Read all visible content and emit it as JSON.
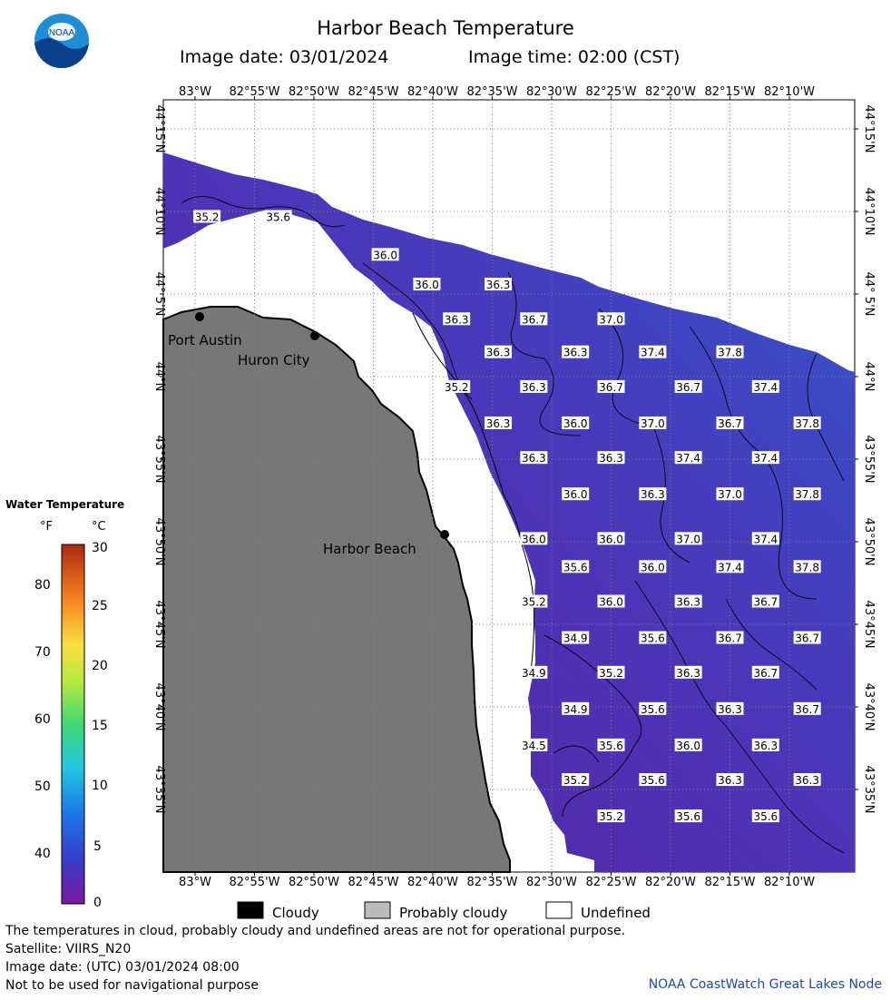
{
  "header": {
    "title": "Harbor Beach Temperature",
    "image_date": "Image date: 03/01/2024",
    "image_time": "Image time: 02:00 (CST)",
    "logo_text": "NOAA"
  },
  "map": {
    "lon_labels": [
      "83°W",
      "82°55'W",
      "82°50'W",
      "82°45'W",
      "82°40'W",
      "82°35'W",
      "82°30'W",
      "82°25'W",
      "82°20'W",
      "82°15'W",
      "82°10'W"
    ],
    "lat_labels": [
      "44°15'N",
      "44°10'N",
      "44° 5'N",
      "44°N",
      "43°55'N",
      "43°50'N",
      "43°45'N",
      "43°40'N",
      "43°35'N"
    ],
    "places": [
      {
        "name": "Port Austin"
      },
      {
        "name": "Huron City"
      },
      {
        "name": "Harbor Beach"
      }
    ],
    "temperature_labels": [
      {
        "text": "35.2",
        "lon": "82°59'",
        "lat": "44°9.7'"
      },
      {
        "text": "35.6",
        "lon": "82°53'",
        "lat": "44°9.7'"
      },
      {
        "text": "36.0",
        "lon": "82°44'",
        "lat": "44°7.4'"
      },
      {
        "text": "36.0",
        "lon": "82°40.5'",
        "lat": "44°5.6'"
      },
      {
        "text": "36.3",
        "lon": "82°34.5'",
        "lat": "44°5.6'"
      },
      {
        "text": "36.3",
        "lon": "82°38'",
        "lat": "44°3.5'"
      },
      {
        "text": "36.7",
        "lon": "82°31.5'",
        "lat": "44°3.5'"
      },
      {
        "text": "37.0",
        "lon": "82°25'",
        "lat": "44°3.5'"
      },
      {
        "text": "36.3",
        "lon": "82°34.5'",
        "lat": "44°1.5'"
      },
      {
        "text": "36.3",
        "lon": "82°28'",
        "lat": "44°1.5'"
      },
      {
        "text": "37.4",
        "lon": "82°21.5'",
        "lat": "44°1.5'"
      },
      {
        "text": "37.8",
        "lon": "82°15'",
        "lat": "44°1.5'"
      },
      {
        "text": "35.2",
        "lon": "82°38'",
        "lat": "43°59.4'"
      },
      {
        "text": "36.3",
        "lon": "82°31.5'",
        "lat": "43°59.4'"
      },
      {
        "text": "36.7",
        "lon": "82°25'",
        "lat": "43°59.4'"
      },
      {
        "text": "36.7",
        "lon": "82°18.5'",
        "lat": "43°59.4'"
      },
      {
        "text": "37.4",
        "lon": "82°12'",
        "lat": "43°59.4'"
      },
      {
        "text": "36.3",
        "lon": "82°34.5'",
        "lat": "43°57.2'"
      },
      {
        "text": "36.0",
        "lon": "82°28'",
        "lat": "43°57.2'"
      },
      {
        "text": "37.0",
        "lon": "82°21.5'",
        "lat": "43°57.2'"
      },
      {
        "text": "36.7",
        "lon": "82°15'",
        "lat": "43°57.2'"
      },
      {
        "text": "37.8",
        "lon": "82°8.5'",
        "lat": "43°57.2'"
      },
      {
        "text": "36.3",
        "lon": "82°31.5'",
        "lat": "43°55.1'"
      },
      {
        "text": "36.3",
        "lon": "82°25'",
        "lat": "43°55.1'"
      },
      {
        "text": "37.4",
        "lon": "82°18.5'",
        "lat": "43°55.1'"
      },
      {
        "text": "37.4",
        "lon": "82°12'",
        "lat": "43°55.1'"
      },
      {
        "text": "36.0",
        "lon": "82°28'",
        "lat": "43°52.9'"
      },
      {
        "text": "36.3",
        "lon": "82°21.5'",
        "lat": "43°52.9'"
      },
      {
        "text": "37.0",
        "lon": "82°15'",
        "lat": "43°52.9'"
      },
      {
        "text": "37.8",
        "lon": "82°8.5'",
        "lat": "43°52.9'"
      },
      {
        "text": "36.0",
        "lon": "82°31.5'",
        "lat": "43°50.2'"
      },
      {
        "text": "36.0",
        "lon": "82°25'",
        "lat": "43°50.2'"
      },
      {
        "text": "37.0",
        "lon": "82°18.5'",
        "lat": "43°50.2'"
      },
      {
        "text": "37.4",
        "lon": "82°12'",
        "lat": "43°50.2'"
      },
      {
        "text": "35.6",
        "lon": "82°28'",
        "lat": "43°48.5'"
      },
      {
        "text": "36.0",
        "lon": "82°21.5'",
        "lat": "43°48.5'"
      },
      {
        "text": "37.4",
        "lon": "82°15'",
        "lat": "43°48.5'"
      },
      {
        "text": "37.8",
        "lon": "82°8.5'",
        "lat": "43°48.5'"
      },
      {
        "text": "35.2",
        "lon": "82°31.5'",
        "lat": "43°46.4'"
      },
      {
        "text": "36.0",
        "lon": "82°25'",
        "lat": "43°46.4'"
      },
      {
        "text": "36.3",
        "lon": "82°18.5'",
        "lat": "43°46.4'"
      },
      {
        "text": "36.7",
        "lon": "82°12'",
        "lat": "43°46.4'"
      },
      {
        "text": "34.9",
        "lon": "82°28'",
        "lat": "43°44.2'"
      },
      {
        "text": "35.6",
        "lon": "82°21.5'",
        "lat": "43°44.2'"
      },
      {
        "text": "36.7",
        "lon": "82°15'",
        "lat": "43°44.2'"
      },
      {
        "text": "36.7",
        "lon": "82°8.5'",
        "lat": "43°44.2'"
      },
      {
        "text": "34.9",
        "lon": "82°31.5'",
        "lat": "43°42.1'"
      },
      {
        "text": "35.2",
        "lon": "82°25'",
        "lat": "43°42.1'"
      },
      {
        "text": "36.3",
        "lon": "82°18.5'",
        "lat": "43°42.1'"
      },
      {
        "text": "36.7",
        "lon": "82°12'",
        "lat": "43°42.1'"
      },
      {
        "text": "34.9",
        "lon": "82°28'",
        "lat": "43°39.9'"
      },
      {
        "text": "35.6",
        "lon": "82°21.5'",
        "lat": "43°39.9'"
      },
      {
        "text": "36.3",
        "lon": "82°15'",
        "lat": "43°39.9'"
      },
      {
        "text": "36.7",
        "lon": "82°8.5'",
        "lat": "43°39.9'"
      },
      {
        "text": "34.5",
        "lon": "82°31.5'",
        "lat": "43°37.7'"
      },
      {
        "text": "35.6",
        "lon": "82°25'",
        "lat": "43°37.7'"
      },
      {
        "text": "36.0",
        "lon": "82°18.5'",
        "lat": "43°37.7'"
      },
      {
        "text": "36.3",
        "lon": "82°12'",
        "lat": "43°37.7'"
      },
      {
        "text": "35.2",
        "lon": "82°28'",
        "lat": "43°35.6'"
      },
      {
        "text": "35.6",
        "lon": "82°21.5'",
        "lat": "43°35.6'"
      },
      {
        "text": "36.3",
        "lon": "82°15'",
        "lat": "43°35.6'"
      },
      {
        "text": "36.3",
        "lon": "82°8.5'",
        "lat": "43°35.6'"
      },
      {
        "text": "35.2",
        "lon": "82°25'",
        "lat": "43°33.4'"
      },
      {
        "text": "35.6",
        "lon": "82°18.5'",
        "lat": "43°33.4'"
      },
      {
        "text": "35.6",
        "lon": "82°12'",
        "lat": "43°33.4'"
      }
    ]
  },
  "legend": {
    "title": "Water Temperature",
    "unit_f": "°F",
    "unit_c": "°C",
    "f_ticks": [
      "80",
      "70",
      "60",
      "50",
      "40"
    ],
    "c_ticks": [
      "30",
      "25",
      "20",
      "15",
      "10",
      "5",
      "0"
    ]
  },
  "cloud_legend": {
    "cloudy": "Cloudy",
    "probably_cloudy": "Probably cloudy",
    "undefined": "Undefined"
  },
  "footer": {
    "disclaimer": "The temperatures in cloud, probably cloudy and undefined areas are not for operational purpose.",
    "satellite": "Satellite: VIIRS_N20",
    "utc_date": "Image date: (UTC) 03/01/2024  08:00",
    "nav_warning": "Not to be used for navigational purpose",
    "credit": "NOAA CoastWatch Great Lakes Node"
  },
  "colors": {
    "land": "#777777",
    "water_low": "#5a20a0",
    "water_high": "#3a4cc8",
    "credit": "#1a4aa8"
  }
}
